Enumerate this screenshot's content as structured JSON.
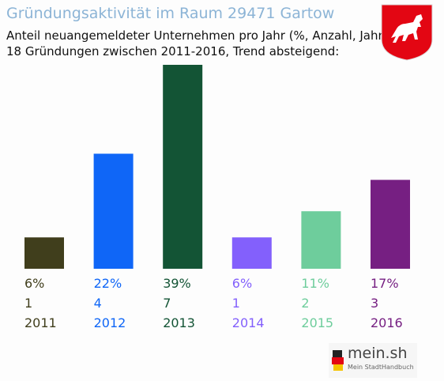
{
  "chart_data": {
    "type": "bar",
    "title": "Gründungsaktivität im Raum 29471 Gartow",
    "subtitle_lines": [
      "Anteil neuangemeldeter Unternehmen pro Jahr (%, Anzahl, Jahr)",
      "18 Gründungen zwischen 2011-2016, Trend absteigend:"
    ],
    "categories": [
      "2011",
      "2012",
      "2013",
      "2014",
      "2015",
      "2016"
    ],
    "values": [
      6,
      22,
      39,
      6,
      11,
      17
    ],
    "percent_labels": [
      "6%",
      "22%",
      "39%",
      "6%",
      "11%",
      "17%"
    ],
    "counts": [
      "1",
      "4",
      "7",
      "1",
      "2",
      "3"
    ],
    "colors": [
      "#403e1c",
      "#0f66f7",
      "#135435",
      "#8360fc",
      "#6ecd9c",
      "#761f82"
    ],
    "ylim": [
      0,
      39
    ]
  },
  "logo": {
    "text": "mein.sh",
    "subtext": "Mein StadtHandbuch",
    "crest_color": "#e30613"
  }
}
